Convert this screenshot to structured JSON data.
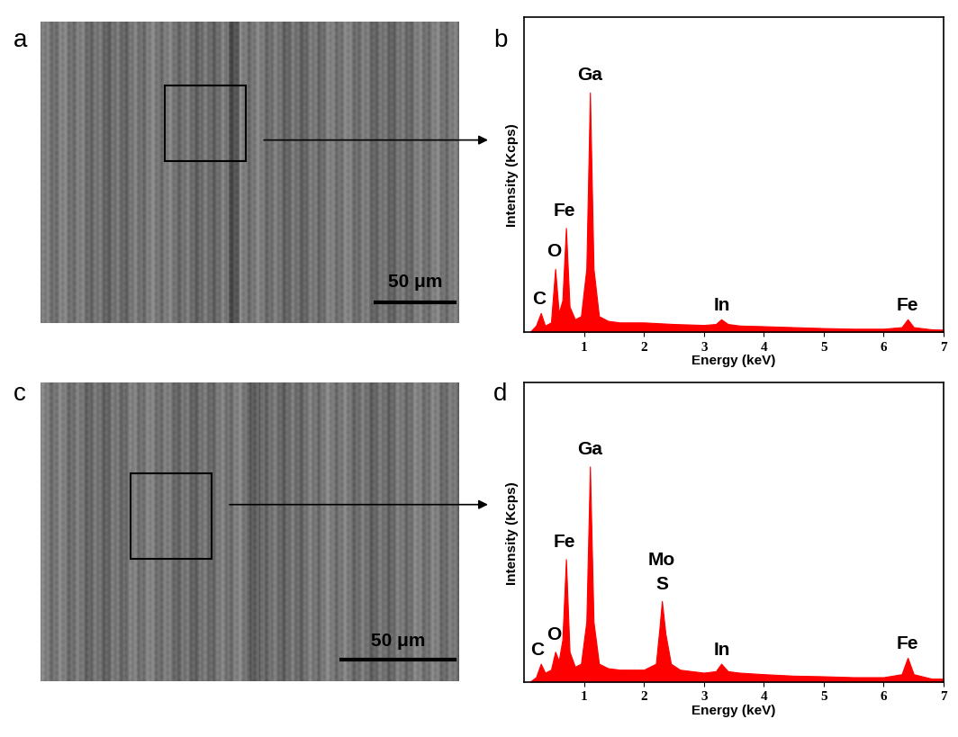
{
  "panel_labels": [
    "a",
    "b",
    "c",
    "d"
  ],
  "images": [
    {
      "scale_bar": "50 μm"
    },
    {
      "scale_bar": "50 μm"
    }
  ],
  "chart_data": [
    {
      "type": "area",
      "xlabel": "Energy (keV)",
      "ylabel": "Intensity (Kcps)",
      "color": "#ff0000",
      "xlim": [
        0,
        7
      ],
      "xticks": [
        1,
        2,
        3,
        4,
        5,
        6,
        7
      ],
      "ylim": [
        0,
        100
      ],
      "tick_labels": "x",
      "x": [
        0.1,
        0.2,
        0.28,
        0.35,
        0.45,
        0.52,
        0.58,
        0.64,
        0.7,
        0.76,
        0.85,
        0.95,
        1.04,
        1.1,
        1.16,
        1.25,
        1.4,
        1.6,
        2.0,
        2.5,
        3.0,
        3.2,
        3.29,
        3.4,
        3.6,
        4.0,
        4.5,
        5.0,
        5.5,
        6.0,
        6.3,
        6.4,
        6.5,
        6.8,
        7.0
      ],
      "values": [
        0,
        2,
        6,
        2,
        3,
        20,
        6,
        10,
        33,
        8,
        4,
        5,
        20,
        76,
        20,
        5,
        3.5,
        3,
        3,
        2.5,
        2.2,
        2.5,
        4,
        2.5,
        2,
        1.8,
        1.5,
        1.2,
        1,
        1,
        1.5,
        4,
        1.5,
        0.8,
        0.7
      ],
      "annotations": [
        {
          "text": "C",
          "x": 0.25,
          "y": 8
        },
        {
          "text": "O",
          "x": 0.5,
          "y": 23
        },
        {
          "text": "Fe",
          "x": 0.68,
          "y": 36
        },
        {
          "text": "Ga",
          "x": 1.1,
          "y": 79
        },
        {
          "text": "In",
          "x": 3.3,
          "y": 6
        },
        {
          "text": "Fe",
          "x": 6.4,
          "y": 6
        }
      ]
    },
    {
      "type": "area",
      "xlabel": "Energy (keV)",
      "ylabel": "Intensity (Kcps)",
      "color": "#ff0000",
      "xlim": [
        0,
        7
      ],
      "xticks": [
        1,
        2,
        3,
        4,
        5,
        6,
        7
      ],
      "ylim": [
        0,
        100
      ],
      "tick_labels": "x",
      "x": [
        0.1,
        0.2,
        0.28,
        0.35,
        0.45,
        0.52,
        0.58,
        0.64,
        0.7,
        0.76,
        0.85,
        0.95,
        1.04,
        1.1,
        1.16,
        1.25,
        1.4,
        1.6,
        2.0,
        2.2,
        2.26,
        2.3,
        2.36,
        2.45,
        2.6,
        3.0,
        3.2,
        3.29,
        3.4,
        3.6,
        4.0,
        4.5,
        5.0,
        5.5,
        6.0,
        6.3,
        6.4,
        6.5,
        6.8,
        7.0
      ],
      "values": [
        0,
        1.5,
        6,
        3,
        4,
        10,
        7,
        14,
        41,
        10,
        5,
        6,
        20,
        72,
        20,
        6,
        4.5,
        4,
        4,
        6,
        18,
        27,
        16,
        6,
        4,
        3,
        3.5,
        6,
        3.5,
        3,
        2.5,
        2,
        1.8,
        1.5,
        1.5,
        2.5,
        8,
        2.5,
        1,
        1
      ],
      "annotations": [
        {
          "text": "C",
          "x": 0.22,
          "y": 8
        },
        {
          "text": "O",
          "x": 0.5,
          "y": 13
        },
        {
          "text": "Fe",
          "x": 0.68,
          "y": 44
        },
        {
          "text": "Ga",
          "x": 1.1,
          "y": 75
        },
        {
          "text": "Mo",
          "x": 2.3,
          "y": 38
        },
        {
          "text": "S",
          "x": 2.3,
          "y": 30
        },
        {
          "text": "In",
          "x": 3.3,
          "y": 8
        },
        {
          "text": "Fe",
          "x": 6.4,
          "y": 10
        }
      ]
    }
  ]
}
